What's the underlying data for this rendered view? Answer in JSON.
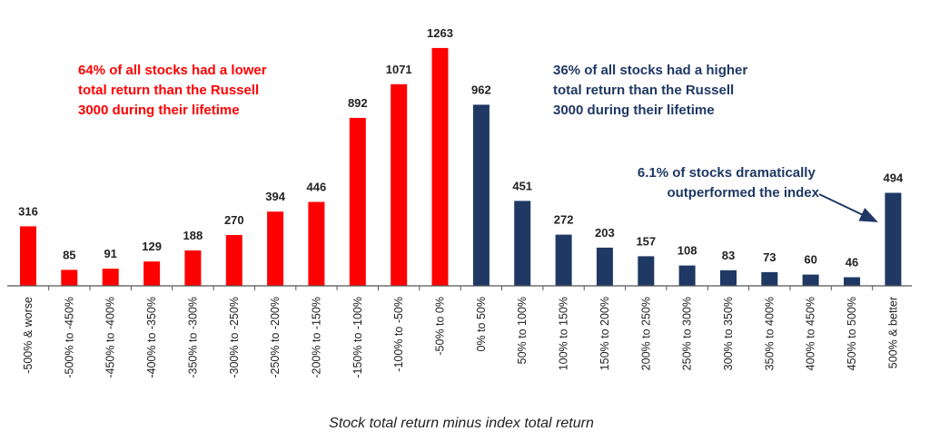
{
  "chart_data": {
    "type": "bar",
    "title": "",
    "xlabel": "Stock total return minus index total return",
    "ylabel": "",
    "ylim": [
      0,
      1300
    ],
    "grid": false,
    "categories": [
      "-500% & worse",
      "-500% to -450%",
      "-450% to -400%",
      "-400% to -350%",
      "-350% to -300%",
      "-300% to -250%",
      "-250% to -200%",
      "-200% to -150%",
      "-150% to -100%",
      "-100% to -50%",
      "-50% to 0%",
      "0% to 50%",
      "50% to 100%",
      "100% to 150%",
      "150% to 200%",
      "200% to 250%",
      "250% to 300%",
      "300% to 350%",
      "350% to 400%",
      "400% to 450%",
      "450% to 500%",
      "500% & better"
    ],
    "values": [
      316,
      85,
      91,
      129,
      188,
      270,
      394,
      446,
      892,
      1071,
      1263,
      962,
      451,
      272,
      203,
      157,
      108,
      83,
      73,
      60,
      46,
      494
    ],
    "bar_colors": [
      "#ff0000",
      "#ff0000",
      "#ff0000",
      "#ff0000",
      "#ff0000",
      "#ff0000",
      "#ff0000",
      "#ff0000",
      "#ff0000",
      "#ff0000",
      "#ff0000",
      "#1f3864",
      "#1f3864",
      "#1f3864",
      "#1f3864",
      "#1f3864",
      "#1f3864",
      "#1f3864",
      "#1f3864",
      "#1f3864",
      "#1f3864",
      "#1f3864"
    ],
    "annotations": {
      "lower": [
        "64% of all stocks had a lower",
        "total return than the Russell",
        "3000 during their lifetime"
      ],
      "higher": [
        "36% of all stocks had a higher",
        "total return than the Russell",
        "3000 during their lifetime"
      ],
      "outperformed": [
        "6.1% of stocks dramatically",
        "outperformed the index"
      ]
    },
    "colors": {
      "lower": "#ff0000",
      "higher": "#1f3864",
      "axis": "#555555"
    }
  }
}
